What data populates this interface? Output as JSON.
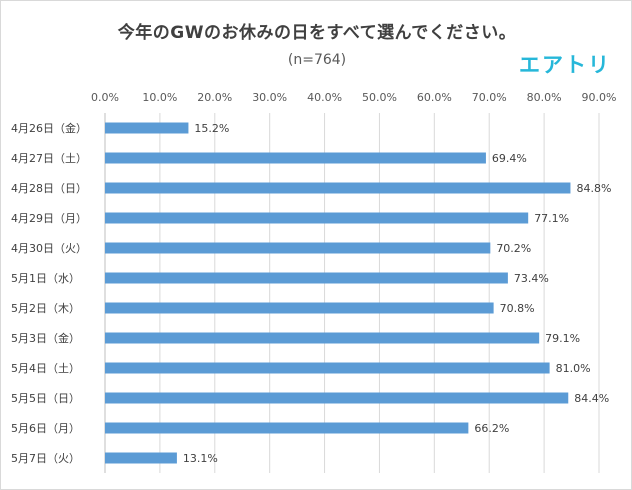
{
  "chart_data": {
    "type": "bar",
    "orientation": "horizontal",
    "title": "今年のGWのお休みの日をすべて選んでください。",
    "subtitle": "(n=764)",
    "brand": "エアトリ",
    "categories": [
      "4月26日（金）",
      "4月27日（土）",
      "4月28日（日）",
      "4月29日（月）",
      "4月30日（火）",
      "5月1日（水）",
      "5月2日（木）",
      "5月3日（金）",
      "5月4日（土）",
      "5月5日（日）",
      "5月6日（月）",
      "5月7日（火）"
    ],
    "values": [
      15.2,
      69.4,
      84.8,
      77.1,
      70.2,
      73.4,
      70.8,
      79.1,
      81.0,
      84.4,
      66.2,
      13.1
    ],
    "value_labels": [
      "15.2%",
      "69.4%",
      "84.8%",
      "77.1%",
      "70.2%",
      "73.4%",
      "70.8%",
      "79.1%",
      "81.0%",
      "84.4%",
      "66.2%",
      "13.1%"
    ],
    "xlim": [
      0,
      90
    ],
    "x_ticks": [
      "0.0%",
      "10.0%",
      "20.0%",
      "30.0%",
      "40.0%",
      "50.0%",
      "60.0%",
      "70.0%",
      "80.0%",
      "90.0%"
    ],
    "tick_position": "top",
    "grid": true,
    "bar_color": "#5b9bd5",
    "brand_color": "#26b7d9"
  }
}
